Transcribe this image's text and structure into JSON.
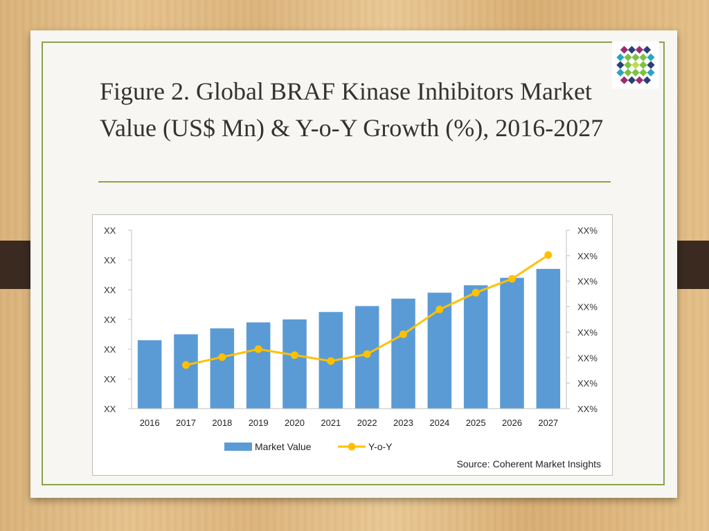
{
  "slide": {
    "title": "Figure 2. Global BRAF Kinase Inhibitors Market Value (US$ Mn) & Y-o-Y Growth (%), 2016-2027"
  },
  "colors": {
    "bar": "#5b9bd5",
    "line": "#ffc000",
    "accent": "#8aa24b"
  },
  "chart_data": {
    "type": "bar",
    "categories": [
      "2016",
      "2017",
      "2018",
      "2019",
      "2020",
      "2021",
      "2022",
      "2023",
      "2024",
      "2025",
      "2026",
      "2027"
    ],
    "series": [
      {
        "name": "Market Value",
        "type": "bar",
        "axis": "left",
        "values": [
          23,
          25,
          27,
          29,
          30,
          32.5,
          34.5,
          37,
          39,
          41.5,
          44,
          47
        ]
      },
      {
        "name": "Y-o-Y",
        "type": "line",
        "axis": "right",
        "values": [
          null,
          4.4,
          5.2,
          6.0,
          5.4,
          4.8,
          5.5,
          7.5,
          10.0,
          11.7,
          13.1,
          15.5
        ]
      }
    ],
    "ylim": [
      0,
      60
    ],
    "y2lim": [
      0,
      18
    ],
    "y_tick_labels": [
      "XX",
      "XX",
      "XX",
      "XX",
      "XX",
      "XX",
      "XX"
    ],
    "y2_tick_labels": [
      "XX%",
      "XX%",
      "XX%",
      "XX%",
      "XX%",
      "XX%",
      "XX%",
      "XX%"
    ],
    "legend": {
      "placement": "bottom",
      "entries": [
        "Market Value",
        "Y-o-Y"
      ]
    },
    "source": "Source: Coherent Market Insights",
    "grid": false
  }
}
